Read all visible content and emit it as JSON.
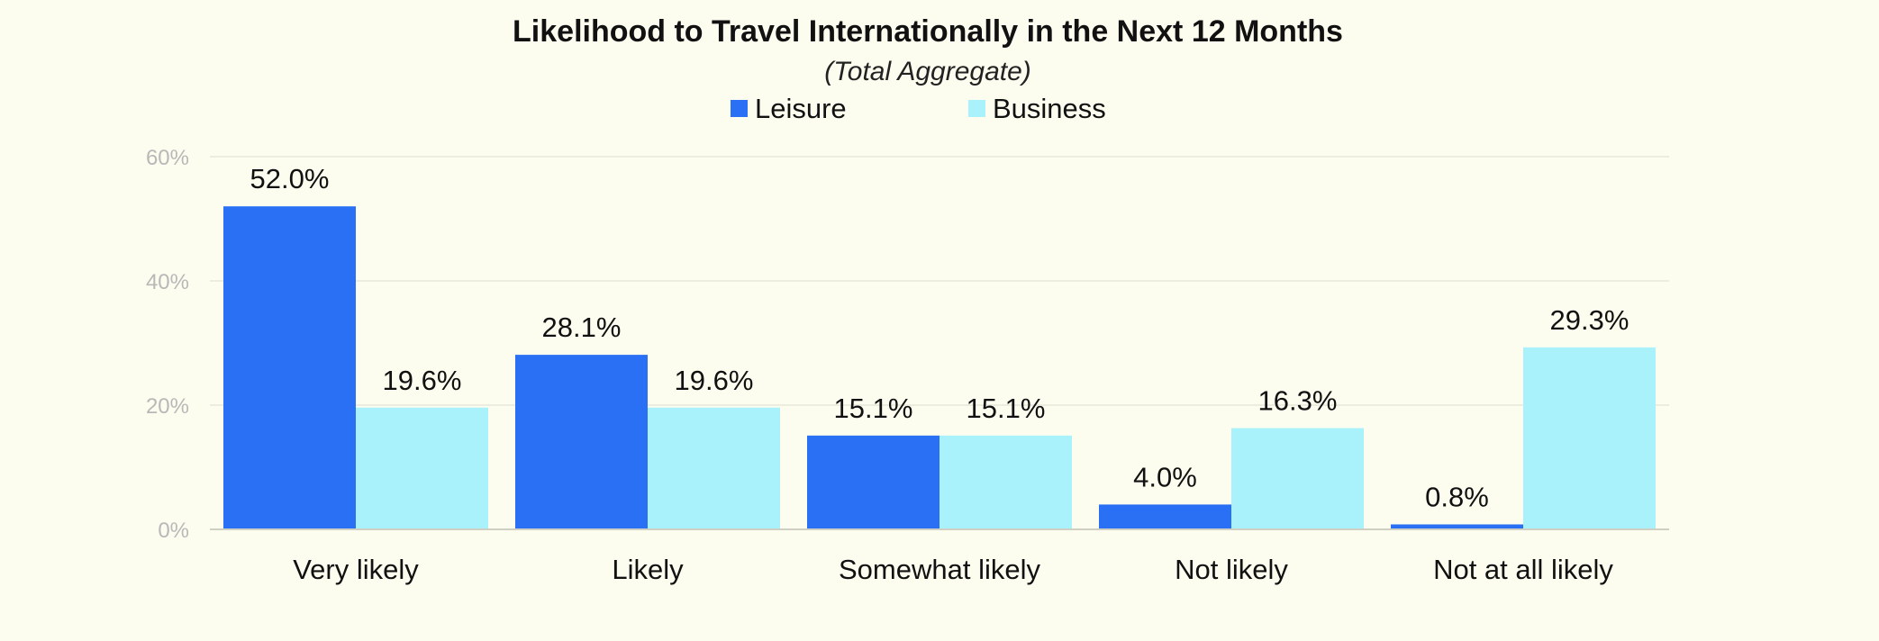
{
  "chart_data": {
    "type": "bar",
    "title": "Likelihood to Travel Internationally in the Next 12 Months",
    "subtitle": "(Total Aggregate)",
    "categories": [
      "Very likely",
      "Likely",
      "Somewhat likely",
      "Not likely",
      "Not at all likely"
    ],
    "series": [
      {
        "name": "Leisure",
        "color": "#2970f5",
        "values": [
          52.0,
          28.1,
          15.1,
          4.0,
          0.8
        ],
        "labels": [
          "52.0%",
          "28.1%",
          "15.1%",
          "4.0%",
          "0.8%"
        ]
      },
      {
        "name": "Business",
        "color": "#a9f2fb",
        "values": [
          19.6,
          19.6,
          15.1,
          16.3,
          29.3
        ],
        "labels": [
          "19.6%",
          "19.6%",
          "15.1%",
          "16.3%",
          "29.3%"
        ]
      }
    ],
    "yticks": [
      "0%",
      "20%",
      "40%",
      "60%"
    ],
    "ytick_values": [
      0,
      20,
      40,
      60
    ],
    "ylim": [
      0,
      60
    ],
    "xlabel": "",
    "ylabel": "",
    "grid": true,
    "legend_position": "top-center"
  }
}
